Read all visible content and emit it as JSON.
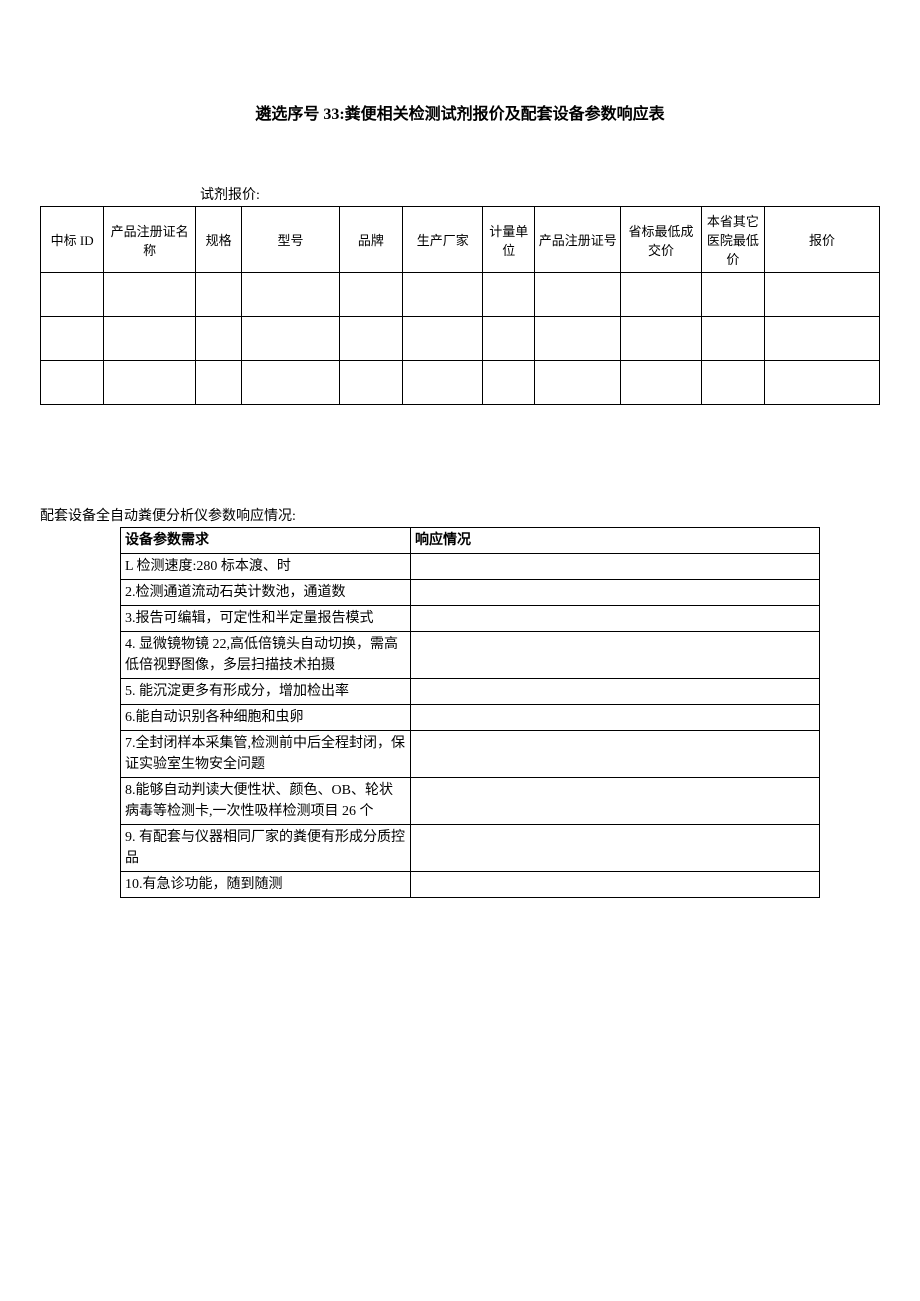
{
  "title": "遴选序号 33:粪便相关检测试剂报价及配套设备参数响应表",
  "table1": {
    "caption": "试剂报价:",
    "headers": [
      "中标 ID",
      "产品注册证名称",
      "规格",
      "型号",
      "品牌",
      "生产厂家",
      "计量单位",
      "产品注册证号",
      "省标最低成交价",
      "本省其它医院最低价",
      "报价"
    ],
    "col_widths": [
      "55",
      "80",
      "40",
      "85",
      "55",
      "70",
      "45",
      "75",
      "70",
      "55",
      "100"
    ],
    "empty_rows": 3
  },
  "table2": {
    "caption": "配套设备全自动粪便分析仪参数响应情况:",
    "headers": [
      "设备参数需求",
      "响应情况"
    ],
    "rows": [
      "L 检测速度:280 标本渡、时",
      "2.检测通道流动石英计数池，通道数",
      "3.报告可编辑，可定性和半定量报告模式",
      "4. 显微镜物镜 22,高低倍镜头自动切换，需高低倍视野图像，多层扫描技术拍摄",
      "5. 能沉淀更多有形成分，增加检出率",
      "6.能自动识别各种细胞和虫卵",
      "7.全封闭样本采集管,检测前中后全程封闭，保证实验室生物安全问题",
      "8.能够自动判读大便性状、颜色、OB、轮状病毒等检测卡,一次性吸样检测项目 26 个",
      "9. 有配套与仪器相同厂家的粪便有形成分质控品",
      "10.有急诊功能，随到随测"
    ]
  }
}
